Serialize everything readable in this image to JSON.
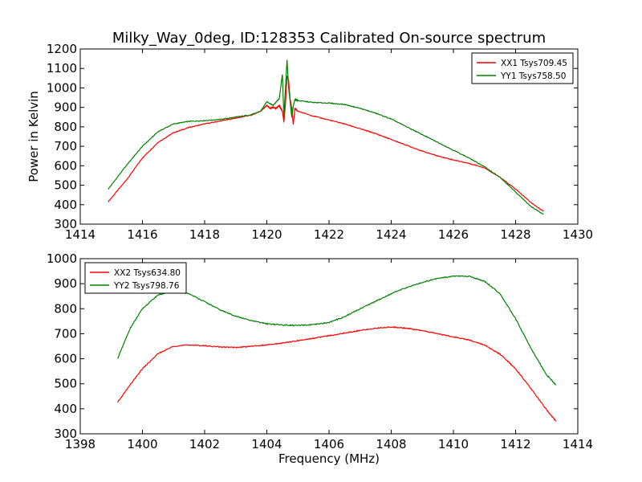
{
  "figure": {
    "title": "Milky_Way_0deg, ID:128353 Calibrated On-source spectrum"
  },
  "chart_data": [
    {
      "type": "line",
      "title": "Milky_Way_0deg, ID:128353 Calibrated On-source spectrum",
      "xlabel": "",
      "ylabel": "Power in Kelvin",
      "xlim": [
        1414,
        1430
      ],
      "ylim": [
        300,
        1200
      ],
      "xticks": [
        1414,
        1416,
        1418,
        1420,
        1422,
        1424,
        1426,
        1428,
        1430
      ],
      "yticks": [
        300,
        400,
        500,
        600,
        700,
        800,
        900,
        1000,
        1100,
        1200
      ],
      "grid": false,
      "legend_position": "top-right",
      "series": [
        {
          "name": "XX1 Tsys709.45",
          "color": "#ff0000",
          "x": [
            1414.9,
            1415.5,
            1416,
            1416.5,
            1417,
            1417.5,
            1418,
            1418.5,
            1419,
            1419.5,
            1419.8,
            1420,
            1420.1,
            1420.2,
            1420.3,
            1420.4,
            1420.5,
            1420.55,
            1420.6,
            1420.65,
            1420.7,
            1420.75,
            1420.8,
            1420.85,
            1420.9,
            1421,
            1421.5,
            1422,
            1422.5,
            1423,
            1423.5,
            1424,
            1424.5,
            1425,
            1425.5,
            1426,
            1426.5,
            1427,
            1427.5,
            1428,
            1428.5,
            1428.9
          ],
          "values": [
            415,
            530,
            640,
            720,
            770,
            797,
            815,
            830,
            845,
            860,
            880,
            910,
            895,
            900,
            895,
            910,
            880,
            825,
            920,
            1060,
            1040,
            940,
            900,
            810,
            895,
            880,
            855,
            835,
            815,
            790,
            765,
            735,
            705,
            675,
            650,
            630,
            612,
            590,
            540,
            480,
            410,
            365
          ]
        },
        {
          "name": "YY1 Tsys758.50",
          "color": "#008000",
          "x": [
            1414.9,
            1415.5,
            1416,
            1416.5,
            1417,
            1417.5,
            1418,
            1418.5,
            1419,
            1419.5,
            1419.8,
            1420,
            1420.2,
            1420.4,
            1420.5,
            1420.55,
            1420.6,
            1420.65,
            1420.7,
            1420.75,
            1420.8,
            1420.85,
            1420.9,
            1421,
            1421.5,
            1422,
            1422.5,
            1423,
            1423.5,
            1424,
            1424.5,
            1425,
            1425.5,
            1426,
            1426.5,
            1427,
            1427.5,
            1428,
            1428.5,
            1428.9
          ],
          "values": [
            480,
            605,
            700,
            775,
            815,
            828,
            832,
            838,
            850,
            862,
            880,
            930,
            910,
            945,
            1070,
            850,
            1000,
            1145,
            1000,
            930,
            850,
            905,
            940,
            935,
            925,
            922,
            915,
            895,
            870,
            840,
            800,
            760,
            720,
            680,
            640,
            595,
            540,
            465,
            390,
            350
          ]
        }
      ]
    },
    {
      "type": "line",
      "title": "",
      "xlabel": "Frequency (MHz)",
      "ylabel": "",
      "xlim": [
        1398,
        1414
      ],
      "ylim": [
        300,
        1000
      ],
      "xticks": [
        1398,
        1400,
        1402,
        1404,
        1406,
        1408,
        1410,
        1412,
        1414
      ],
      "yticks": [
        300,
        400,
        500,
        600,
        700,
        800,
        900,
        1000
      ],
      "grid": false,
      "legend_position": "top-left",
      "series": [
        {
          "name": "XX2 Tsys634.80",
          "color": "#ff0000",
          "x": [
            1399.2,
            1399.6,
            1400,
            1400.5,
            1401,
            1401.5,
            1402,
            1402.5,
            1403,
            1403.5,
            1404,
            1404.5,
            1405,
            1405.5,
            1406,
            1406.5,
            1407,
            1407.5,
            1408,
            1408.5,
            1409,
            1409.5,
            1410,
            1410.5,
            1411,
            1411.5,
            1412,
            1412.5,
            1413,
            1413.3
          ],
          "values": [
            425,
            495,
            560,
            620,
            650,
            655,
            652,
            647,
            645,
            650,
            655,
            663,
            672,
            682,
            692,
            703,
            713,
            722,
            727,
            722,
            712,
            700,
            687,
            675,
            655,
            618,
            560,
            480,
            395,
            350
          ]
        },
        {
          "name": "YY2 Tsys798.76",
          "color": "#008000",
          "x": [
            1399.2,
            1399.6,
            1400,
            1400.5,
            1401,
            1401.5,
            1402,
            1402.5,
            1403,
            1403.5,
            1404,
            1404.5,
            1405,
            1405.5,
            1406,
            1406.5,
            1407,
            1407.5,
            1408,
            1408.5,
            1409,
            1409.5,
            1410,
            1410.5,
            1411,
            1411.5,
            1412,
            1412.5,
            1413,
            1413.3
          ],
          "values": [
            600,
            720,
            800,
            855,
            870,
            860,
            828,
            795,
            770,
            752,
            740,
            735,
            733,
            736,
            745,
            768,
            800,
            830,
            860,
            885,
            905,
            922,
            930,
            930,
            910,
            860,
            760,
            640,
            535,
            495
          ]
        }
      ]
    }
  ]
}
